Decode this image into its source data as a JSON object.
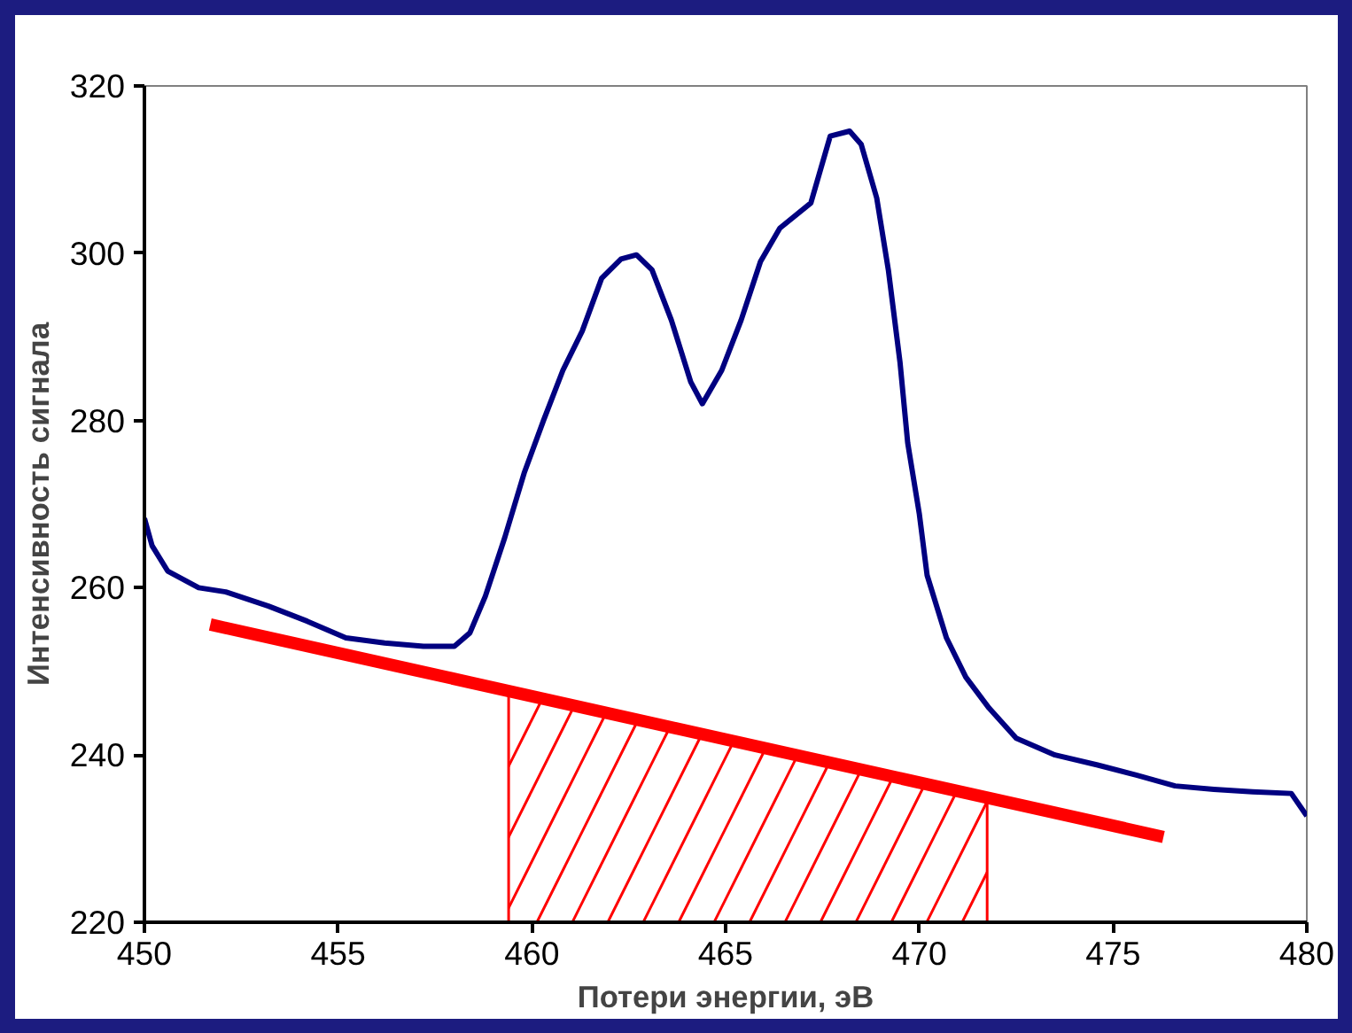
{
  "chart_data": {
    "type": "line",
    "xlabel": "Потери энергии, эВ",
    "ylabel": "Интенсивность сигнала",
    "xlim": [
      450,
      480
    ],
    "ylim": [
      220,
      320
    ],
    "xticks": [
      450,
      455,
      460,
      465,
      470,
      475,
      480
    ],
    "yticks": [
      220,
      240,
      260,
      280,
      300,
      320
    ],
    "grid": false,
    "series": [
      {
        "color": "#000080",
        "x": [
          450,
          450.2,
          450.6,
          451.4,
          452.1,
          453.2,
          454.2,
          455.2,
          456.2,
          457.2,
          458.0,
          458.4,
          458.8,
          459.3,
          459.8,
          460.3,
          460.8,
          461.3,
          461.8,
          462.3,
          462.7,
          463.1,
          463.6,
          464.1,
          464.4,
          464.9,
          465.4,
          465.9,
          466.4,
          467.2,
          467.7,
          468.2,
          468.5,
          468.9,
          469.2,
          469.5,
          469.7,
          470.0,
          470.2,
          470.7,
          471.2,
          471.8,
          472.5,
          473.5,
          474.6,
          475.6,
          476.6,
          477.6,
          478.6,
          479.6,
          480
        ],
        "values": [
          268.3,
          265,
          262,
          260,
          259.5,
          257.8,
          256,
          254,
          253.4,
          253,
          253,
          254.6,
          259,
          266,
          273.7,
          280,
          286,
          290.7,
          297,
          299.3,
          299.8,
          298,
          292,
          284.6,
          282,
          286,
          292,
          299,
          303,
          306,
          314,
          314.6,
          313,
          306.6,
          298,
          287,
          277.3,
          268.8,
          261.5,
          254,
          249.3,
          245.6,
          242,
          240,
          238.8,
          237.6,
          236.3,
          235.9,
          235.6,
          235.4,
          232.7
        ]
      },
      {
        "color": "#ff0000",
        "x": [
          451.7,
          476.3
        ],
        "values": [
          255.6,
          230.2
        ]
      },
      {
        "type": "area",
        "color": "#ff0000",
        "x": [
          459.4,
          471.75
        ],
        "values": [
          247.2,
          234.8
        ]
      }
    ]
  }
}
